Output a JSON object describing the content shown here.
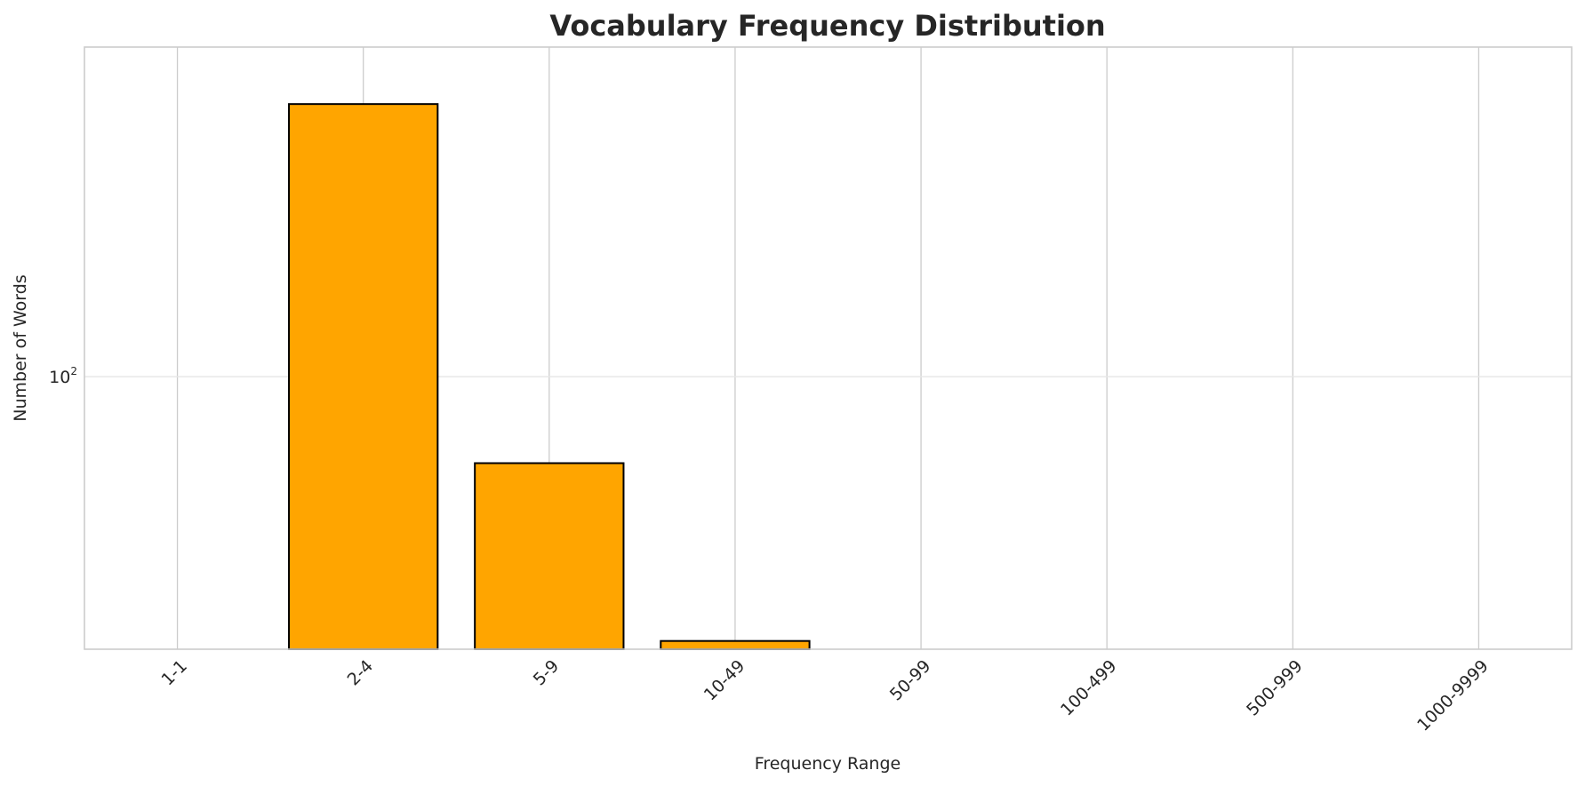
{
  "chart_data": {
    "type": "bar",
    "title": "Vocabulary Frequency Distribution",
    "xlabel": "Frequency Range",
    "ylabel": "Number of Words",
    "yscale": "log",
    "ylim": [
      20,
      700
    ],
    "y_ticks": [
      100
    ],
    "y_tick_labels": [
      {
        "base": "10",
        "exp": "2"
      }
    ],
    "categories": [
      "1-1",
      "2-4",
      "5-9",
      "10-49",
      "50-99",
      "100-499",
      "500-999",
      "1000-9999"
    ],
    "values": [
      0,
      500,
      60,
      21,
      0,
      0,
      0,
      0
    ],
    "bar_color": "#ffa500",
    "bar_edge_color": "#000000",
    "grid": true,
    "x_tick_rotation": 45
  }
}
